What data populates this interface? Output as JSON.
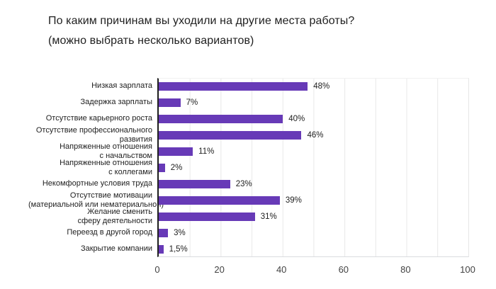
{
  "title": {
    "line1": "По каким причинам вы уходили на другие места работы?",
    "line2": "(можно выбрать несколько вариантов)"
  },
  "chart_data": {
    "type": "bar",
    "orientation": "horizontal",
    "title": "По каким причинам вы уходили на другие места работы? (можно выбрать несколько вариантов)",
    "categories": [
      "Низкая зарплата",
      "Задержка зарплаты",
      "Отсутствие карьерного роста",
      "Отсутствие профессионального развития",
      "Напряженные отношения с начальством",
      "Напряженные отношения с коллегами",
      "Некомфортные условия труда",
      "Отсутствие мотивации (материальной или нематериальной)",
      "Желание сменить сферу деятельности",
      "Переезд в другой город",
      "Закрытие компании"
    ],
    "category_lines": [
      [
        "Низкая зарплата"
      ],
      [
        "Задержка зарплаты"
      ],
      [
        "Отсутствие карьерного роста"
      ],
      [
        "Отсутствие профессионального",
        "развития"
      ],
      [
        "Напряженные отношения",
        "с начальством"
      ],
      [
        "Напряженные отношения",
        "с коллегами"
      ],
      [
        "Некомфортные условия труда"
      ],
      [
        "Отсутствие мотивации",
        "(материальной или нематериальной)"
      ],
      [
        "Желание сменить",
        "сферу деятельности"
      ],
      [
        "Переезд в другой город"
      ],
      [
        "Закрытие компании"
      ]
    ],
    "values": [
      48,
      7,
      40,
      46,
      11,
      2,
      23,
      39,
      31,
      3,
      1.5
    ],
    "value_labels": [
      "48%",
      "7%",
      "40%",
      "46%",
      "11%",
      "2%",
      "23%",
      "39%",
      "31%",
      "3%",
      "1,5%"
    ],
    "xlim": [
      0,
      100
    ],
    "x_ticks": [
      "0",
      "20",
      "40",
      "60",
      "80",
      "100"
    ],
    "grid_step": 10,
    "bar_color": "#673AB7",
    "axis_color": "#212121",
    "gridline_color": "#e8e8e8",
    "legend": "none"
  }
}
